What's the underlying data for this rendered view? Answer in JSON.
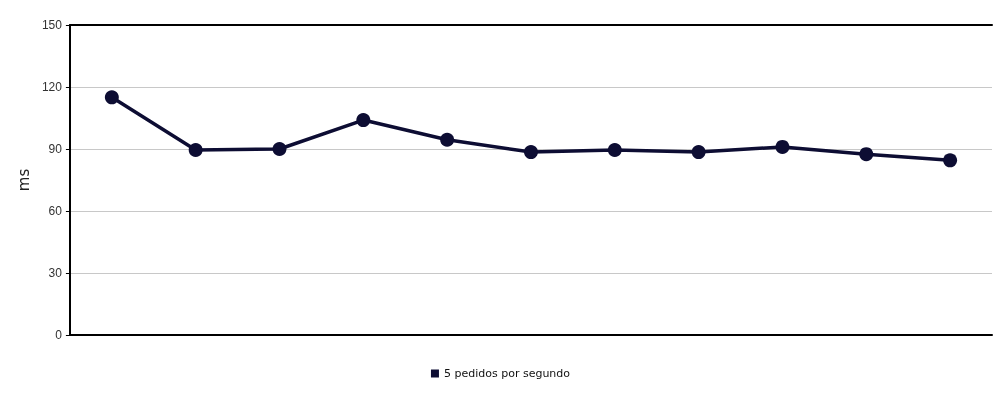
{
  "chart_data": {
    "type": "line",
    "ylabel": "ms",
    "categories": [
      null,
      null,
      null,
      null,
      null,
      null,
      null,
      null,
      null,
      null,
      null
    ],
    "series": [
      {
        "name": "5 pedidos por segundo",
        "color": "#0d0d33",
        "values": [
          115,
          89.5,
          90,
          104,
          94.5,
          88.5,
          89.5,
          88.5,
          91,
          87.5,
          84.5
        ]
      }
    ],
    "ylim": [
      0,
      150
    ],
    "yticks": [
      0,
      30,
      60,
      90,
      120,
      150
    ],
    "grid": "y",
    "legend": "bottom",
    "marker": "circle",
    "line_style": "solid"
  }
}
